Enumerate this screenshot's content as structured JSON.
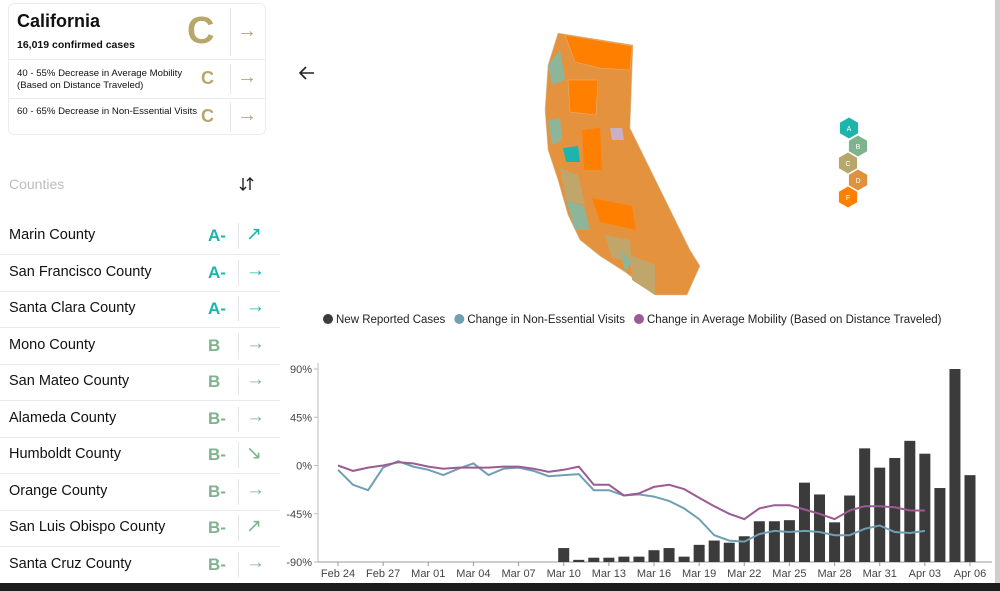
{
  "state": {
    "name": "California",
    "cases": "16,019 confirmed cases",
    "grade": "C",
    "trend": "→",
    "metrics": [
      {
        "label": "40 - 55% Decrease in Average Mobility (Based on Distance Traveled)",
        "grade": "C",
        "trend": "→"
      },
      {
        "label": "60 - 65% Decrease in Non-Essential Visits",
        "grade": "C",
        "trend": "→"
      }
    ]
  },
  "counties": {
    "title": "Counties",
    "rows": [
      {
        "name": "Marin County",
        "grade": "A-",
        "trend": "↗"
      },
      {
        "name": "San Francisco County",
        "grade": "A-",
        "trend": "→"
      },
      {
        "name": "Santa Clara County",
        "grade": "A-",
        "trend": "→"
      },
      {
        "name": "Mono County",
        "grade": "B",
        "trend": "→"
      },
      {
        "name": "San Mateo County",
        "grade": "B",
        "trend": "→"
      },
      {
        "name": "Alameda County",
        "grade": "B-",
        "trend": "→"
      },
      {
        "name": "Humboldt County",
        "grade": "B-",
        "trend": "↘"
      },
      {
        "name": "Orange County",
        "grade": "B-",
        "trend": "→"
      },
      {
        "name": "San Luis Obispo County",
        "grade": "B-",
        "trend": "↗"
      },
      {
        "name": "Santa Cruz County",
        "grade": "B-",
        "trend": "→"
      }
    ]
  },
  "map_legend": [
    "A",
    "B",
    "C",
    "D",
    "F"
  ],
  "chart_data": {
    "type": "bar-line",
    "categories": [
      "Feb 24",
      null,
      null,
      "Feb 27",
      null,
      null,
      "Mar 01",
      null,
      null,
      "Mar 04",
      null,
      null,
      "Mar 07",
      null,
      null,
      "Mar 10",
      null,
      null,
      "Mar 13",
      null,
      null,
      "Mar 16",
      null,
      null,
      "Mar 19",
      null,
      null,
      "Mar 22",
      null,
      null,
      "Mar 25",
      null,
      null,
      "Mar 28",
      null,
      null,
      "Mar 31",
      null,
      null,
      "Apr 03",
      null,
      null,
      "Apr 06"
    ],
    "series": [
      {
        "name": "New Reported Cases",
        "type": "bar",
        "color": "#3b3b3b",
        "values": [
          null,
          null,
          null,
          null,
          null,
          null,
          null,
          null,
          null,
          null,
          null,
          null,
          null,
          null,
          null,
          -77,
          -88,
          -86,
          -86,
          -85,
          -85,
          -79,
          -77,
          -85,
          -74,
          -70,
          -72,
          -66,
          -52,
          -52,
          -51,
          -16,
          -27,
          -53,
          -28,
          16,
          -2,
          7,
          23,
          11,
          -21,
          90,
          -9
        ]
      },
      {
        "name": "Change in Non-Essential Visits",
        "type": "line",
        "color": "#6e9fb3",
        "values": [
          -4,
          -18,
          -23,
          -2,
          4,
          -1,
          -4,
          -9,
          -3,
          2,
          -9,
          -3,
          -2,
          -5,
          -10,
          -9,
          -8,
          -23,
          -23,
          -28,
          -27,
          -29,
          -33,
          -40,
          -50,
          -65,
          -70,
          -71,
          -64,
          -61,
          -62,
          -61,
          -62,
          -65,
          -65,
          -59,
          -56,
          -62,
          -63,
          -61,
          null,
          null,
          null
        ]
      },
      {
        "name": "Change in Average Mobility (Based on Distance Traveled)",
        "type": "line",
        "color": "#9c5b93",
        "values": [
          0,
          -5,
          -2,
          0,
          3,
          2,
          -1,
          -3,
          -2,
          -2,
          -2,
          -1,
          -1,
          -3,
          -6,
          -4,
          -1,
          -18,
          -18,
          -28,
          -26,
          -20,
          -18,
          -22,
          -30,
          -38,
          -45,
          -50,
          -40,
          -37,
          -37,
          -41,
          -45,
          -50,
          -42,
          -38,
          -38,
          -39,
          -42,
          -42,
          null,
          null,
          null
        ]
      }
    ],
    "ylim": [
      -90,
      90
    ],
    "yticks": [
      {
        "value": 90,
        "label": "90%"
      },
      {
        "value": 45,
        "label": "45%"
      },
      {
        "value": 0,
        "label": "0%"
      },
      {
        "value": -45,
        "label": "-45%"
      },
      {
        "value": -90,
        "label": "-90%"
      }
    ],
    "grid": false
  }
}
